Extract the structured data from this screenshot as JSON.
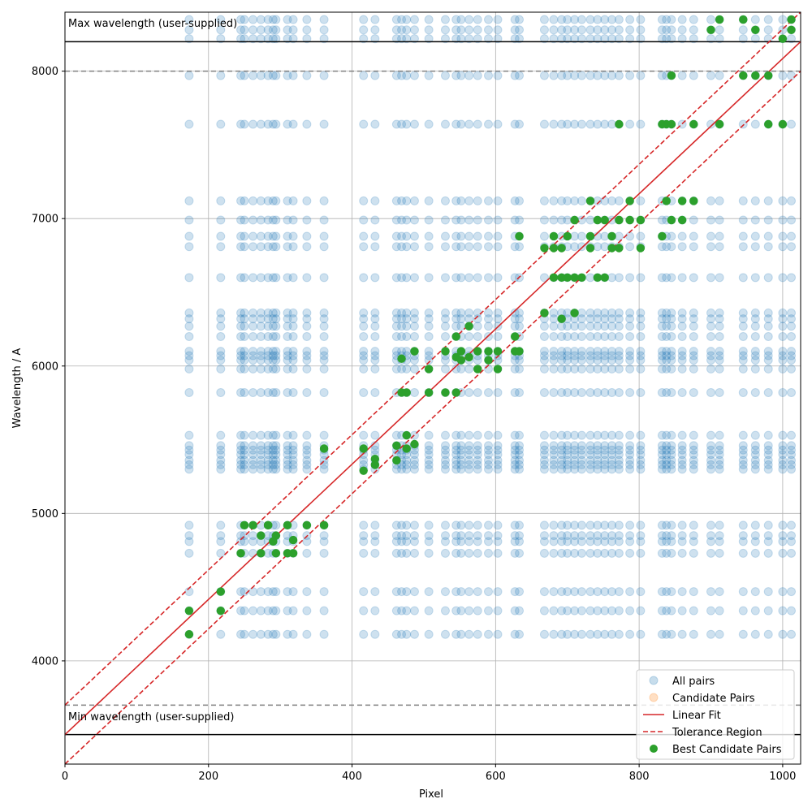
{
  "chart_data": {
    "type": "scatter",
    "title": "",
    "xlabel": "Pixel",
    "ylabel": "Wavelength / A",
    "xlim": [
      0,
      1025
    ],
    "ylim": [
      3300,
      8400
    ],
    "xticks": [
      0,
      200,
      400,
      600,
      800,
      1000
    ],
    "yticks": [
      4000,
      5000,
      6000,
      7000,
      8000
    ],
    "grid": true,
    "legend_position": "bottom-right",
    "colors": {
      "all_pairs": "#1f77b4",
      "candidate_pairs": "#ff7f0e",
      "linear_fit": "#d62728",
      "tolerance": "#d62728",
      "best": "#2ca02c",
      "limit_line": "#000000",
      "limit_dashed": "#808080"
    },
    "annotations": {
      "max_label": "Max wavelength (user-supplied)",
      "min_label": "Min wavelength (user-supplied)",
      "max_wavelength": 8200,
      "min_wavelength": 3500,
      "max_tolerance_wavelength": 8000,
      "min_tolerance_wavelength": 3700
    },
    "linear_fit": {
      "x": [
        0,
        1025
      ],
      "y": [
        3500,
        8200
      ]
    },
    "tolerance_upper": {
      "x": [
        0,
        1025
      ],
      "y": [
        3700,
        8400
      ]
    },
    "tolerance_lower": {
      "x": [
        0,
        1025
      ],
      "y": [
        3300,
        8000
      ]
    },
    "all_pairs": {
      "pixels": [
        173,
        217,
        245,
        250,
        262,
        273,
        283,
        290,
        294,
        310,
        318,
        337,
        361,
        416,
        432,
        462,
        469,
        476,
        487,
        507,
        530,
        545,
        552,
        563,
        575,
        590,
        603,
        627,
        633,
        668,
        681,
        692,
        700,
        710,
        720,
        732,
        742,
        752,
        762,
        772,
        787,
        802,
        832,
        838,
        845,
        860,
        876,
        900,
        912,
        945,
        962,
        980,
        1000,
        1012
      ],
      "wavelengths": [
        4180,
        4340,
        4470,
        4730,
        4810,
        4850,
        4920,
        5300,
        5330,
        5360,
        5400,
        5430,
        5460,
        5530,
        5820,
        5980,
        6040,
        6070,
        6100,
        6200,
        6270,
        6320,
        6360,
        6600,
        6810,
        6880,
        6990,
        7120,
        7640,
        7970,
        8220,
        8280,
        8350
      ]
    },
    "best_candidate_pairs": {
      "x": [
        173,
        173,
        217,
        217,
        245,
        250,
        262,
        273,
        273,
        283,
        283,
        290,
        294,
        294,
        310,
        310,
        318,
        318,
        337,
        361,
        361,
        416,
        416,
        432,
        432,
        462,
        462,
        469,
        469,
        476,
        476,
        476,
        487,
        487,
        507,
        507,
        530,
        530,
        545,
        545,
        545,
        552,
        552,
        563,
        563,
        575,
        575,
        590,
        590,
        603,
        603,
        627,
        627,
        633,
        633,
        668,
        668,
        681,
        681,
        681,
        692,
        692,
        692,
        700,
        700,
        710,
        710,
        710,
        720,
        732,
        732,
        732,
        742,
        742,
        752,
        752,
        762,
        762,
        772,
        772,
        772,
        787,
        787,
        802,
        802,
        832,
        832,
        838,
        838,
        845,
        845,
        845,
        860,
        860,
        876,
        876,
        900,
        912,
        912,
        945,
        945,
        962,
        962,
        980,
        980,
        1000,
        1000,
        1012,
        1012
      ],
      "y": [
        4180,
        4340,
        4340,
        4470,
        4730,
        4920,
        4920,
        4730,
        4850,
        4920,
        4920,
        4810,
        4730,
        4850,
        4730,
        4920,
        4730,
        4820,
        4920,
        4920,
        5440,
        5290,
        5440,
        5330,
        5370,
        5360,
        5460,
        5820,
        6050,
        5440,
        5530,
        5820,
        5470,
        6100,
        5820,
        5980,
        5820,
        6100,
        5820,
        6060,
        6200,
        6040,
        6100,
        6060,
        6270,
        5980,
        6100,
        6040,
        6100,
        5980,
        6100,
        6100,
        6200,
        6100,
        6880,
        6360,
        6800,
        6600,
        6800,
        6880,
        6320,
        6600,
        6800,
        6600,
        6880,
        6360,
        6600,
        6990,
        6600,
        6800,
        6880,
        7120,
        6600,
        6990,
        6600,
        6990,
        6800,
        6880,
        6800,
        6990,
        7640,
        6990,
        7120,
        6800,
        6990,
        6880,
        7640,
        7120,
        7640,
        6990,
        7640,
        7970,
        6990,
        7120,
        7120,
        7640,
        8280,
        7640,
        8350,
        7970,
        8350,
        7970,
        8280,
        7640,
        7970,
        7640,
        8220,
        8280,
        8350
      ]
    },
    "legend": [
      {
        "key": "all_pairs",
        "label": "All pairs"
      },
      {
        "key": "candidate_pairs",
        "label": "Candidate Pairs"
      },
      {
        "key": "linear_fit",
        "label": "Linear Fit"
      },
      {
        "key": "tolerance",
        "label": "Tolerance Region"
      },
      {
        "key": "best",
        "label": "Best Candidate Pairs"
      }
    ]
  }
}
